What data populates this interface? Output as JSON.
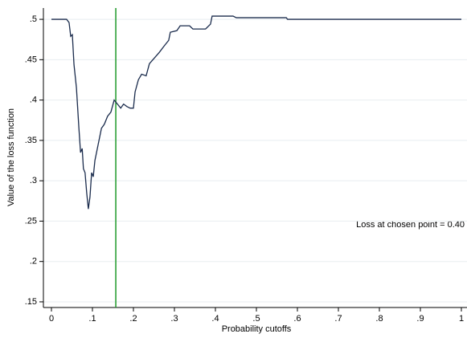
{
  "chart_data": {
    "type": "line",
    "x_label": "Probability cutoffs",
    "y_label": "Value of the loss function",
    "annotation": "Loss at chosen point =  0.40",
    "xlim": [
      0,
      1
    ],
    "ylim": [
      0.143,
      0.514
    ],
    "xticks": [
      0,
      {
        "value": 0.1,
        "label": ".1"
      },
      {
        "value": 0.2,
        "label": ".2"
      },
      {
        "value": 0.3,
        "label": ".3"
      },
      {
        "value": 0.4,
        "label": ".4"
      },
      {
        "value": 0.5,
        "label": ".5"
      },
      {
        "value": 0.6,
        "label": ".6"
      },
      {
        "value": 0.7,
        "label": ".7"
      },
      {
        "value": 0.8,
        "label": ".8"
      },
      {
        "value": 0.9,
        "label": ".9"
      },
      1
    ],
    "yticks": [
      {
        "value": 0.15,
        "label": ".15"
      },
      {
        "value": 0.2,
        "label": ".2"
      },
      {
        "value": 0.25,
        "label": ".25"
      },
      {
        "value": 0.3,
        "label": ".3"
      },
      {
        "value": 0.35,
        "label": ".35"
      },
      {
        "value": 0.4,
        "label": ".4"
      },
      {
        "value": 0.45,
        "label": ".45"
      },
      {
        "value": 0.5,
        "label": ".5"
      }
    ],
    "grid": true,
    "vline": 0.157,
    "vline_color": "#1f9a2a",
    "series": [
      {
        "color": "#1a2b4c",
        "x": [
          0,
          0.037,
          0.043,
          0.047,
          0.051,
          0.055,
          0.061,
          0.067,
          0.071,
          0.075,
          0.078,
          0.082,
          0.086,
          0.09,
          0.094,
          0.098,
          0.102,
          0.106,
          0.11,
          0.114,
          0.118,
          0.122,
          0.129,
          0.137,
          0.145,
          0.153,
          0.161,
          0.169,
          0.176,
          0.184,
          0.192,
          0.2,
          0.204,
          0.212,
          0.22,
          0.231,
          0.239,
          0.251,
          0.263,
          0.275,
          0.286,
          0.29,
          0.306,
          0.314,
          0.337,
          0.345,
          0.376,
          0.388,
          0.392,
          0.443,
          0.451,
          0.573,
          0.576,
          1
        ],
        "values": [
          0.5,
          0.5,
          0.496,
          0.479,
          0.481,
          0.444,
          0.415,
          0.365,
          0.335,
          0.34,
          0.315,
          0.31,
          0.285,
          0.265,
          0.28,
          0.31,
          0.305,
          0.325,
          0.335,
          0.345,
          0.355,
          0.365,
          0.37,
          0.38,
          0.385,
          0.4,
          0.395,
          0.39,
          0.395,
          0.392,
          0.39,
          0.39,
          0.41,
          0.425,
          0.432,
          0.43,
          0.445,
          0.452,
          0.459,
          0.467,
          0.474,
          0.484,
          0.486,
          0.492,
          0.492,
          0.488,
          0.488,
          0.494,
          0.504,
          0.504,
          0.502,
          0.502,
          0.5,
          0.5
        ]
      }
    ]
  }
}
